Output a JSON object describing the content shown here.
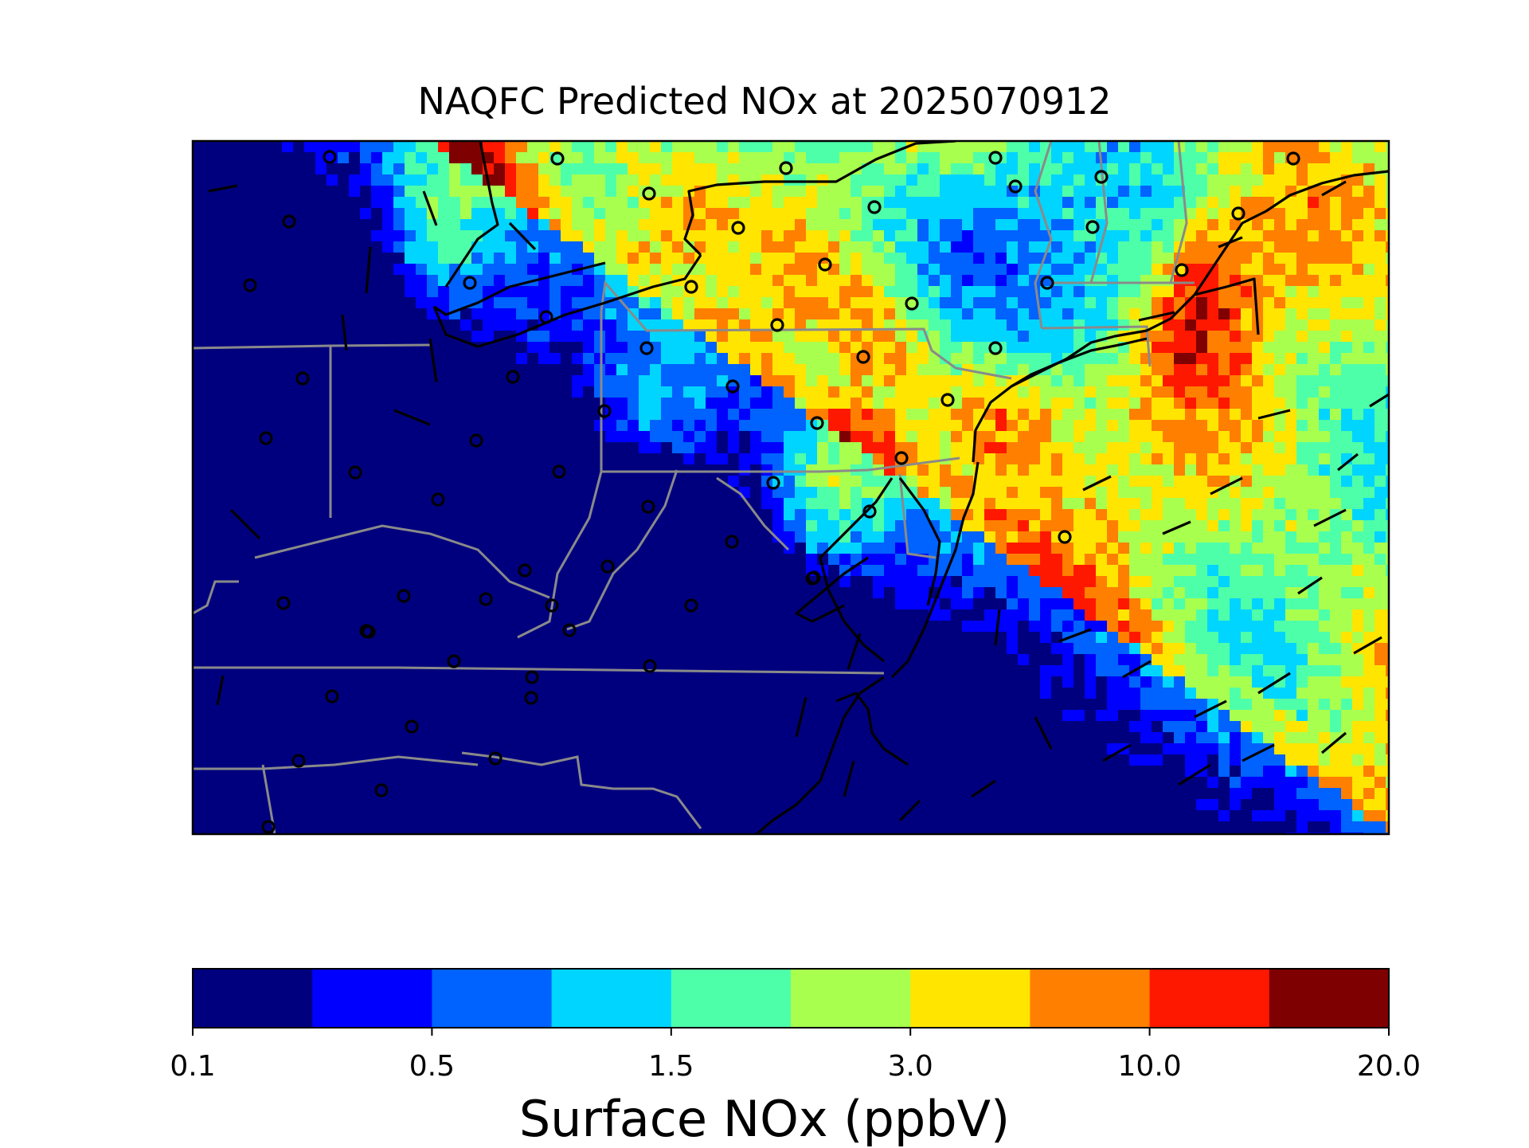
{
  "title": "NAQFC Predicted NOx at 2025070912",
  "colorbar": {
    "label": "Surface NOx (ppbV)",
    "ticks": [
      "0.1",
      "0.5",
      "1.5",
      "3.0",
      "10.0",
      "20.0"
    ],
    "colors": [
      "#00007f",
      "#0000ff",
      "#0062ff",
      "#00d5ff",
      "#4effa9",
      "#a9ff4e",
      "#ffe500",
      "#ff7f00",
      "#ff1800",
      "#7f0000"
    ]
  },
  "map": {
    "field": "Surface NOx",
    "coastline_color": "#000000",
    "state_border_color": "#808080",
    "markers": "observation sites (open circles)",
    "wind": "wind barbs"
  }
}
